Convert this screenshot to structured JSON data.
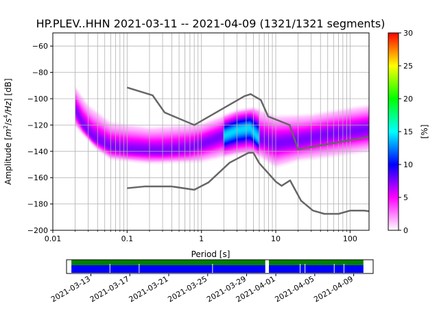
{
  "chart_data": {
    "type": "heatmap",
    "title": "HP.PLEV..HHN   2021-03-11 -- 2021-04-09  (1321/1321 segments)",
    "xlabel": "Period [s]",
    "ylabel_prefix": "Amplitude [",
    "ylabel_m": "m",
    "ylabel_exp1": "2",
    "ylabel_slash": "/",
    "ylabel_s": "s",
    "ylabel_exp2": "4",
    "ylabel_hz": "/Hz",
    "ylabel_suffix": "] [dB]",
    "x_scale": "log",
    "xlim": [
      0.01,
      180
    ],
    "ylim": [
      -200,
      -50
    ],
    "x_ticks": [
      0.01,
      0.1,
      1,
      10,
      100
    ],
    "x_tick_labels": [
      "0.01",
      "0.1",
      "1",
      "10",
      "100"
    ],
    "y_ticks": [
      -200,
      -180,
      -160,
      -140,
      -120,
      -100,
      -80,
      -60
    ],
    "y_tick_labels": [
      "−200",
      "−180",
      "−160",
      "−140",
      "−120",
      "−100",
      "−80",
      "−60"
    ],
    "grid": true,
    "colorbar": {
      "label": "[%]",
      "range": [
        0,
        30
      ],
      "ticks": [
        0,
        5,
        10,
        15,
        20,
        25,
        30
      ],
      "tick_labels": [
        "0",
        "5",
        "10",
        "15",
        "20",
        "25",
        "30"
      ],
      "stops": [
        "#ffffff",
        "#ff00ff",
        "#0000ff",
        "#00ffff",
        "#00ff00",
        "#ffff00",
        "#ff0000"
      ]
    },
    "density": {
      "period_start": 0.02,
      "period_end": 180,
      "mode_db": [
        {
          "period": 0.02,
          "db": -108
        },
        {
          "period": 0.025,
          "db": -120
        },
        {
          "period": 0.035,
          "db": -130
        },
        {
          "period": 0.06,
          "db": -137
        },
        {
          "period": 0.1,
          "db": -139
        },
        {
          "period": 0.3,
          "db": -140
        },
        {
          "period": 0.7,
          "db": -138
        },
        {
          "period": 1.5,
          "db": -131
        },
        {
          "period": 3,
          "db": -124
        },
        {
          "period": 4.5,
          "db": -122
        },
        {
          "period": 6,
          "db": -131
        },
        {
          "period": 10,
          "db": -134
        },
        {
          "period": 20,
          "db": -132
        },
        {
          "period": 50,
          "db": -127
        },
        {
          "period": 100,
          "db": -125
        },
        {
          "period": 180,
          "db": -123
        }
      ],
      "upper_db": [
        {
          "period": 0.02,
          "db": -90
        },
        {
          "period": 0.03,
          "db": -104
        },
        {
          "period": 0.06,
          "db": -117
        },
        {
          "period": 0.2,
          "db": -121
        },
        {
          "period": 1,
          "db": -118
        },
        {
          "period": 3,
          "db": -108
        },
        {
          "period": 5,
          "db": -106
        },
        {
          "period": 10,
          "db": -112
        },
        {
          "period": 30,
          "db": -111
        },
        {
          "period": 100,
          "db": -106
        },
        {
          "period": 180,
          "db": -104
        }
      ],
      "lower_db": [
        {
          "period": 0.02,
          "db": -122
        },
        {
          "period": 0.04,
          "db": -140
        },
        {
          "period": 0.06,
          "db": -147
        },
        {
          "period": 0.2,
          "db": -150
        },
        {
          "period": 1,
          "db": -149
        },
        {
          "period": 3,
          "db": -143
        },
        {
          "period": 5,
          "db": -142
        },
        {
          "period": 10,
          "db": -153
        },
        {
          "period": 20,
          "db": -148
        },
        {
          "period": 60,
          "db": -145
        },
        {
          "period": 180,
          "db": -141
        }
      ]
    },
    "noise_models": {
      "color": "#666666",
      "high": [
        {
          "period": 0.1,
          "db": -91.5
        },
        {
          "period": 0.22,
          "db": -97.4
        },
        {
          "period": 0.32,
          "db": -110.5
        },
        {
          "period": 0.8,
          "db": -120
        },
        {
          "period": 3.8,
          "db": -98
        },
        {
          "period": 4.6,
          "db": -96.5
        },
        {
          "period": 6.3,
          "db": -101
        },
        {
          "period": 7.9,
          "db": -113.5
        },
        {
          "period": 15.4,
          "db": -120
        },
        {
          "period": 20,
          "db": -138.5
        },
        {
          "period": 180,
          "db": -129
        }
      ],
      "low": [
        {
          "period": 0.1,
          "db": -168
        },
        {
          "period": 0.17,
          "db": -166.7
        },
        {
          "period": 0.4,
          "db": -166.7
        },
        {
          "period": 0.8,
          "db": -169.2
        },
        {
          "period": 1.24,
          "db": -163.7
        },
        {
          "period": 2.4,
          "db": -148.6
        },
        {
          "period": 4.3,
          "db": -141.1
        },
        {
          "period": 5,
          "db": -141.1
        },
        {
          "period": 6,
          "db": -149
        },
        {
          "period": 10,
          "db": -163
        },
        {
          "period": 12,
          "db": -166.2
        },
        {
          "period": 15.6,
          "db": -162.1
        },
        {
          "period": 21.9,
          "db": -177.5
        },
        {
          "period": 31.6,
          "db": -185
        },
        {
          "period": 45,
          "db": -187.5
        },
        {
          "period": 70,
          "db": -187.5
        },
        {
          "period": 101,
          "db": -185
        },
        {
          "period": 154,
          "db": -185
        },
        {
          "period": 180,
          "db": -185.5
        }
      ]
    },
    "timeline": {
      "date_tick_labels": [
        "2021-03-13",
        "2021-03-17",
        "2021-03-21",
        "2021-03-25",
        "2021-03-29",
        "2021-04-01",
        "2021-04-05",
        "2021-04-09"
      ],
      "date_ticks": [
        "2021-03-13",
        "2021-03-17",
        "2021-03-21",
        "2021-03-25",
        "2021-03-29",
        "2021-04-01",
        "2021-04-05",
        "2021-04-09"
      ],
      "range": [
        "2021-03-10T12:00",
        "2021-04-11T00:00"
      ],
      "data_available": [
        [
          "2021-03-11T00:00",
          "2021-03-30T22:00"
        ],
        [
          "2021-03-31T07:00",
          "2021-04-10T00:00"
        ]
      ],
      "gaps": [
        "2021-03-14T23:00",
        "2021-03-17T23:00",
        "2021-03-25T12:00",
        "2021-04-03T12:00",
        "2021-04-04T00:00",
        "2021-04-07T00:00",
        "2021-04-08T00:00"
      ],
      "available_color": "#008000",
      "used_color": "#0000ff"
    }
  }
}
